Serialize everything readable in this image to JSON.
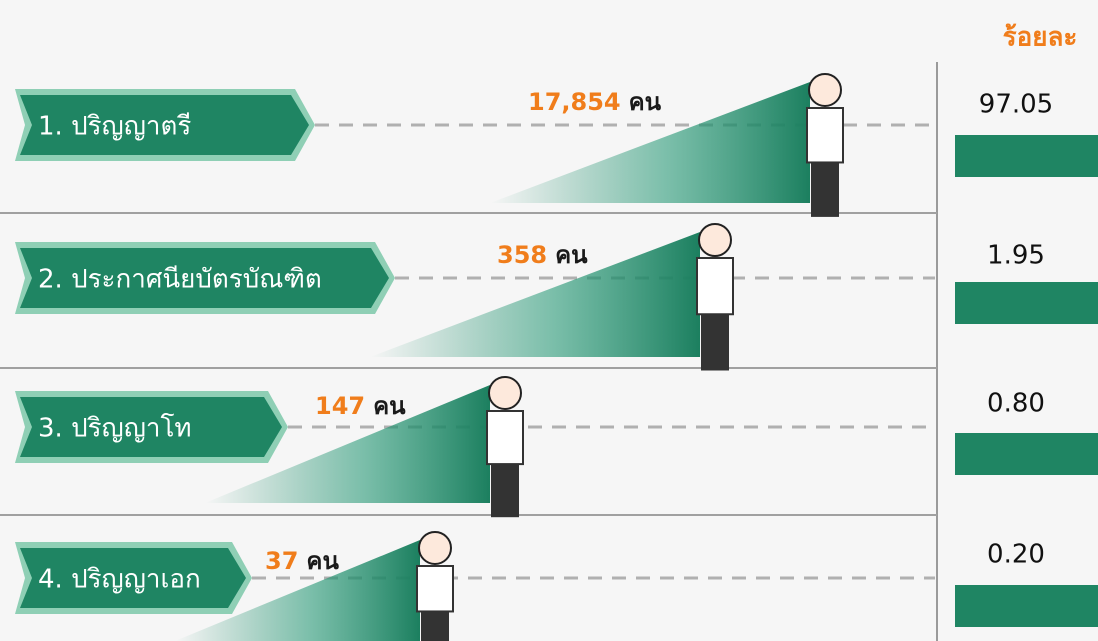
{
  "header": {
    "percent_label": "ร้อยละ"
  },
  "rows": [
    {
      "label": "1. ปริญญาตรี",
      "count": "17,854",
      "unit": "คน",
      "percent": "97.05"
    },
    {
      "label": "2. ประกาศนียบัตรบัณฑิต",
      "count": "358",
      "unit": "คน",
      "percent": "1.95"
    },
    {
      "label": "3. ปริญญาโท",
      "count": "147",
      "unit": "คน",
      "percent": "0.80"
    },
    {
      "label": "4. ปริญญาเอก",
      "count": "37",
      "unit": "คน",
      "percent": "0.20"
    }
  ]
}
